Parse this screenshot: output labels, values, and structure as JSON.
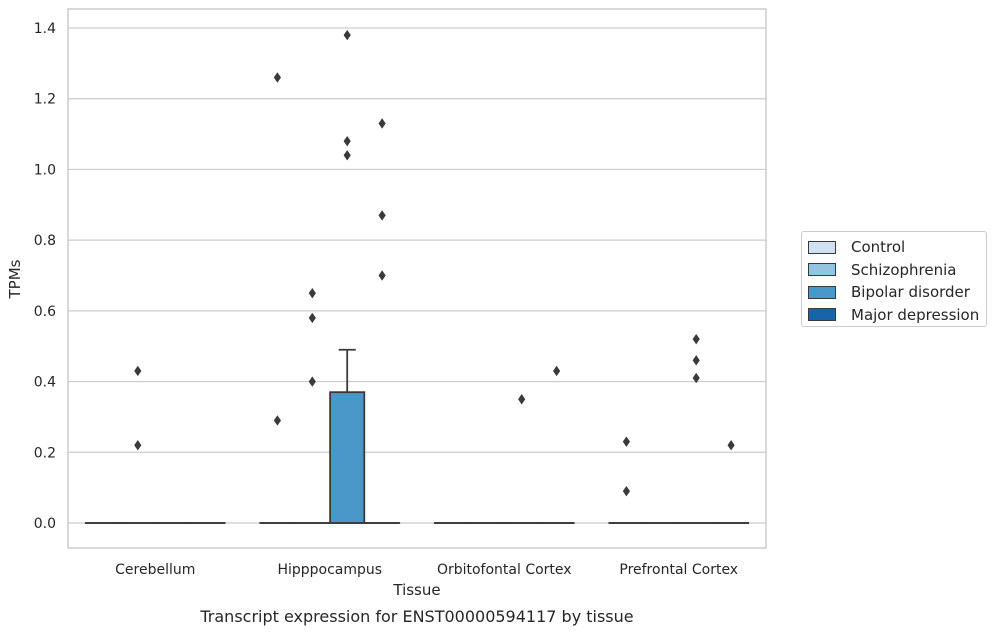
{
  "chart_data": {
    "type": "box",
    "title": "Transcript expression for ENST00000594117 by tissue",
    "xlabel": "Tissue",
    "ylabel": "TPMs",
    "ylim": [
      -0.068,
      1.45
    ],
    "yticks": [
      0.0,
      0.2,
      0.4,
      0.6,
      0.8,
      1.0,
      1.2,
      1.4
    ],
    "ytick_labels": [
      "0.0",
      "0.2",
      "0.4",
      "0.6",
      "0.8",
      "1.0",
      "1.2",
      "1.4"
    ],
    "categories": [
      "Cerebellum",
      "Hipppocampus",
      "Orbitofontal Cortex",
      "Prefrontal Cortex"
    ],
    "grid": "horizontal",
    "legend_position": "right",
    "series": [
      {
        "name": "Control",
        "color": "#d0e1f2",
        "boxes": [
          {
            "category": "Cerebellum",
            "q1": 0,
            "median": 0,
            "q3": 0,
            "whisker_low": 0,
            "whisker_high": 0,
            "outliers": []
          },
          {
            "category": "Hipppocampus",
            "q1": 0,
            "median": 0,
            "q3": 0,
            "whisker_low": 0,
            "whisker_high": 0,
            "outliers": [
              1.26,
              0.29
            ]
          },
          {
            "category": "Orbitofontal Cortex",
            "q1": 0,
            "median": 0,
            "q3": 0,
            "whisker_low": 0,
            "whisker_high": 0,
            "outliers": []
          },
          {
            "category": "Prefrontal Cortex",
            "q1": 0,
            "median": 0,
            "q3": 0,
            "whisker_low": 0,
            "whisker_high": 0,
            "outliers": [
              0.23,
              0.09
            ]
          }
        ]
      },
      {
        "name": "Schizophrenia",
        "color": "#94c4df",
        "boxes": [
          {
            "category": "Cerebellum",
            "q1": 0,
            "median": 0,
            "q3": 0,
            "whisker_low": 0,
            "whisker_high": 0,
            "outliers": [
              0.43,
              0.22
            ]
          },
          {
            "category": "Hipppocampus",
            "q1": 0,
            "median": 0,
            "q3": 0,
            "whisker_low": 0,
            "whisker_high": 0,
            "outliers": [
              0.65,
              0.58,
              0.4
            ]
          },
          {
            "category": "Orbitofontal Cortex",
            "q1": 0,
            "median": 0,
            "q3": 0,
            "whisker_low": 0,
            "whisker_high": 0,
            "outliers": []
          },
          {
            "category": "Prefrontal Cortex",
            "q1": 0,
            "median": 0,
            "q3": 0,
            "whisker_low": 0,
            "whisker_high": 0,
            "outliers": []
          }
        ]
      },
      {
        "name": "Bipolar disorder",
        "color": "#4a98c9",
        "boxes": [
          {
            "category": "Cerebellum",
            "q1": 0,
            "median": 0,
            "q3": 0,
            "whisker_low": 0,
            "whisker_high": 0,
            "outliers": []
          },
          {
            "category": "Hipppocampus",
            "q1": 0,
            "median": 0,
            "q3": 0.37,
            "whisker_low": 0,
            "whisker_high": 0.49,
            "outliers": [
              1.38,
              1.08,
              1.04
            ]
          },
          {
            "category": "Orbitofontal Cortex",
            "q1": 0,
            "median": 0,
            "q3": 0,
            "whisker_low": 0,
            "whisker_high": 0,
            "outliers": [
              0.35
            ]
          },
          {
            "category": "Prefrontal Cortex",
            "q1": 0,
            "median": 0,
            "q3": 0,
            "whisker_low": 0,
            "whisker_high": 0,
            "outliers": [
              0.52,
              0.46,
              0.41
            ]
          }
        ]
      },
      {
        "name": "Major depression",
        "color": "#1764ab",
        "boxes": [
          {
            "category": "Cerebellum",
            "q1": 0,
            "median": 0,
            "q3": 0,
            "whisker_low": 0,
            "whisker_high": 0,
            "outliers": []
          },
          {
            "category": "Hipppocampus",
            "q1": 0,
            "median": 0,
            "q3": 0,
            "whisker_low": 0,
            "whisker_high": 0,
            "outliers": [
              1.13,
              0.87,
              0.7
            ]
          },
          {
            "category": "Orbitofontal Cortex",
            "q1": 0,
            "median": 0,
            "q3": 0,
            "whisker_low": 0,
            "whisker_high": 0,
            "outliers": [
              0.43
            ]
          },
          {
            "category": "Prefrontal Cortex",
            "q1": 0,
            "median": 0,
            "q3": 0,
            "whisker_low": 0,
            "whisker_high": 0,
            "outliers": [
              0.22
            ]
          }
        ]
      }
    ]
  }
}
